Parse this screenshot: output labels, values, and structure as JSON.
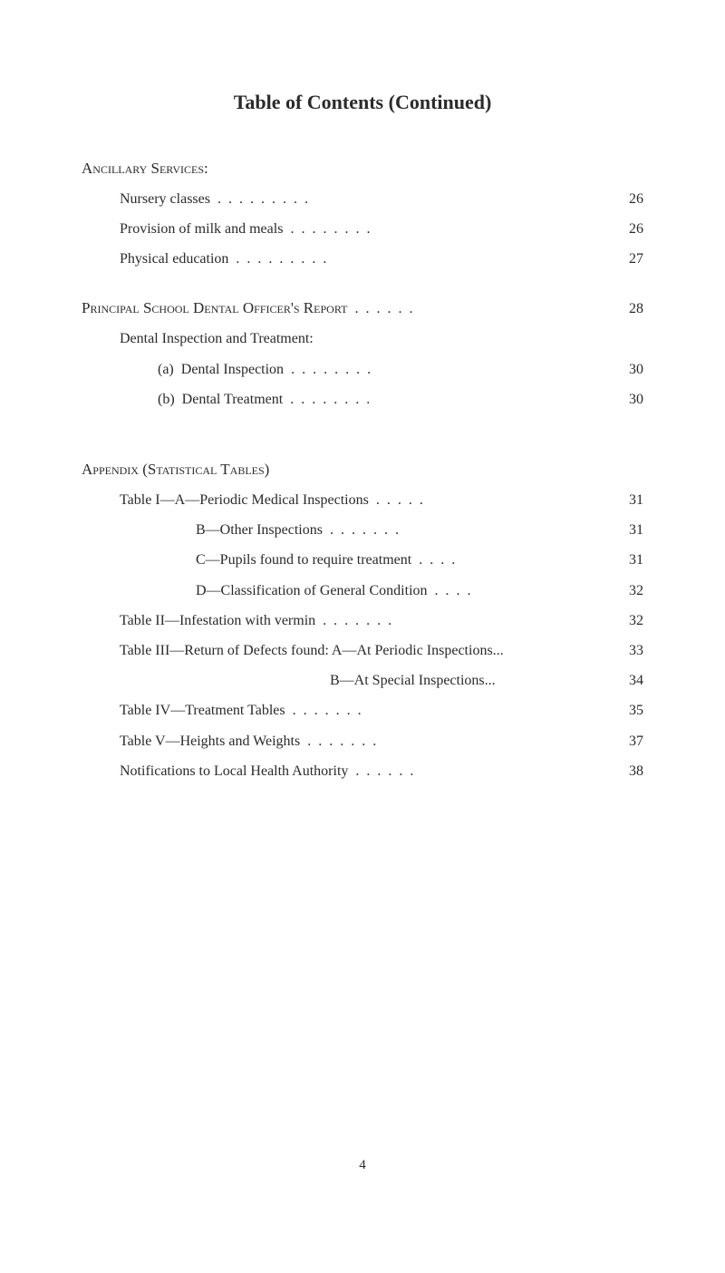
{
  "title": "Table of Contents (Continued)",
  "page_number": "4",
  "colors": {
    "background": "#ffffff",
    "text": "#2a2a2a"
  },
  "typography": {
    "title_fontsize": 22,
    "heading_fontsize": 17,
    "body_fontsize": 16,
    "footer_fontsize": 15
  },
  "sections": [
    {
      "heading": "Ancillary Services:",
      "entries": [
        {
          "label": "Nursery classes",
          "page": "26",
          "indent": 1
        },
        {
          "label": "Provision of milk and meals",
          "page": "26",
          "indent": 1
        },
        {
          "label": "Physical education",
          "page": "27",
          "indent": 1
        }
      ]
    },
    {
      "heading_entry": {
        "label": "Principal School Dental Officer's Report",
        "page": "28",
        "indent": 0
      },
      "entries": [
        {
          "label": "Dental Inspection and Treatment:",
          "page": "",
          "indent": 1
        },
        {
          "label": "(a)  Dental Inspection",
          "page": "30",
          "indent": 2
        },
        {
          "label": "(b)  Dental Treatment",
          "page": "30",
          "indent": 2
        }
      ]
    },
    {
      "heading": "Appendix (Statistical Tables)",
      "entries": [
        {
          "label": "Table I—A—Periodic Medical Inspections",
          "page": "31",
          "indent": 1
        },
        {
          "label": "B—Other Inspections",
          "page": "31",
          "indent": 3
        },
        {
          "label": "C—Pupils found to require treatment",
          "page": "31",
          "indent": 3
        },
        {
          "label": "D—Classification of General Condition",
          "page": "32",
          "indent": 3
        },
        {
          "label": "Table II—Infestation with vermin",
          "page": "32",
          "indent": 1
        },
        {
          "label": "Table III—Return of Defects found: A—At Periodic Inspections...",
          "page": "33",
          "indent": 1,
          "nodots": true
        },
        {
          "label": "B—At Special Inspections...",
          "page": "34",
          "indent": "deep",
          "nodots": true
        },
        {
          "label": "Table IV—Treatment Tables",
          "page": "35",
          "indent": 1
        },
        {
          "label": "Table V—Heights and Weights",
          "page": "37",
          "indent": 1
        },
        {
          "label": "Notifications to Local Health Authority",
          "page": "38",
          "indent": 1
        }
      ]
    }
  ]
}
